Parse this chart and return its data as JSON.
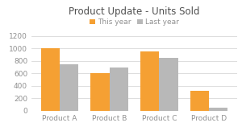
{
  "title": "Product Update - Units Sold",
  "categories": [
    "Product A",
    "Product B",
    "Product C",
    "Product D"
  ],
  "this_year": [
    1000,
    600,
    950,
    325
  ],
  "last_year": [
    750,
    690,
    850,
    50
  ],
  "this_year_color": "#F5A033",
  "last_year_color": "#B8B8B8",
  "legend_labels": [
    "This year",
    "Last year"
  ],
  "ylim": [
    0,
    1300
  ],
  "yticks": [
    0,
    200,
    400,
    600,
    800,
    1000,
    1200
  ],
  "background_color": "#FFFFFF",
  "title_fontsize": 8.5,
  "tick_fontsize": 6.5,
  "legend_fontsize": 6.5,
  "bar_width": 0.38,
  "grid_color": "#D8D8D8",
  "title_color": "#505050",
  "tick_color": "#909090"
}
